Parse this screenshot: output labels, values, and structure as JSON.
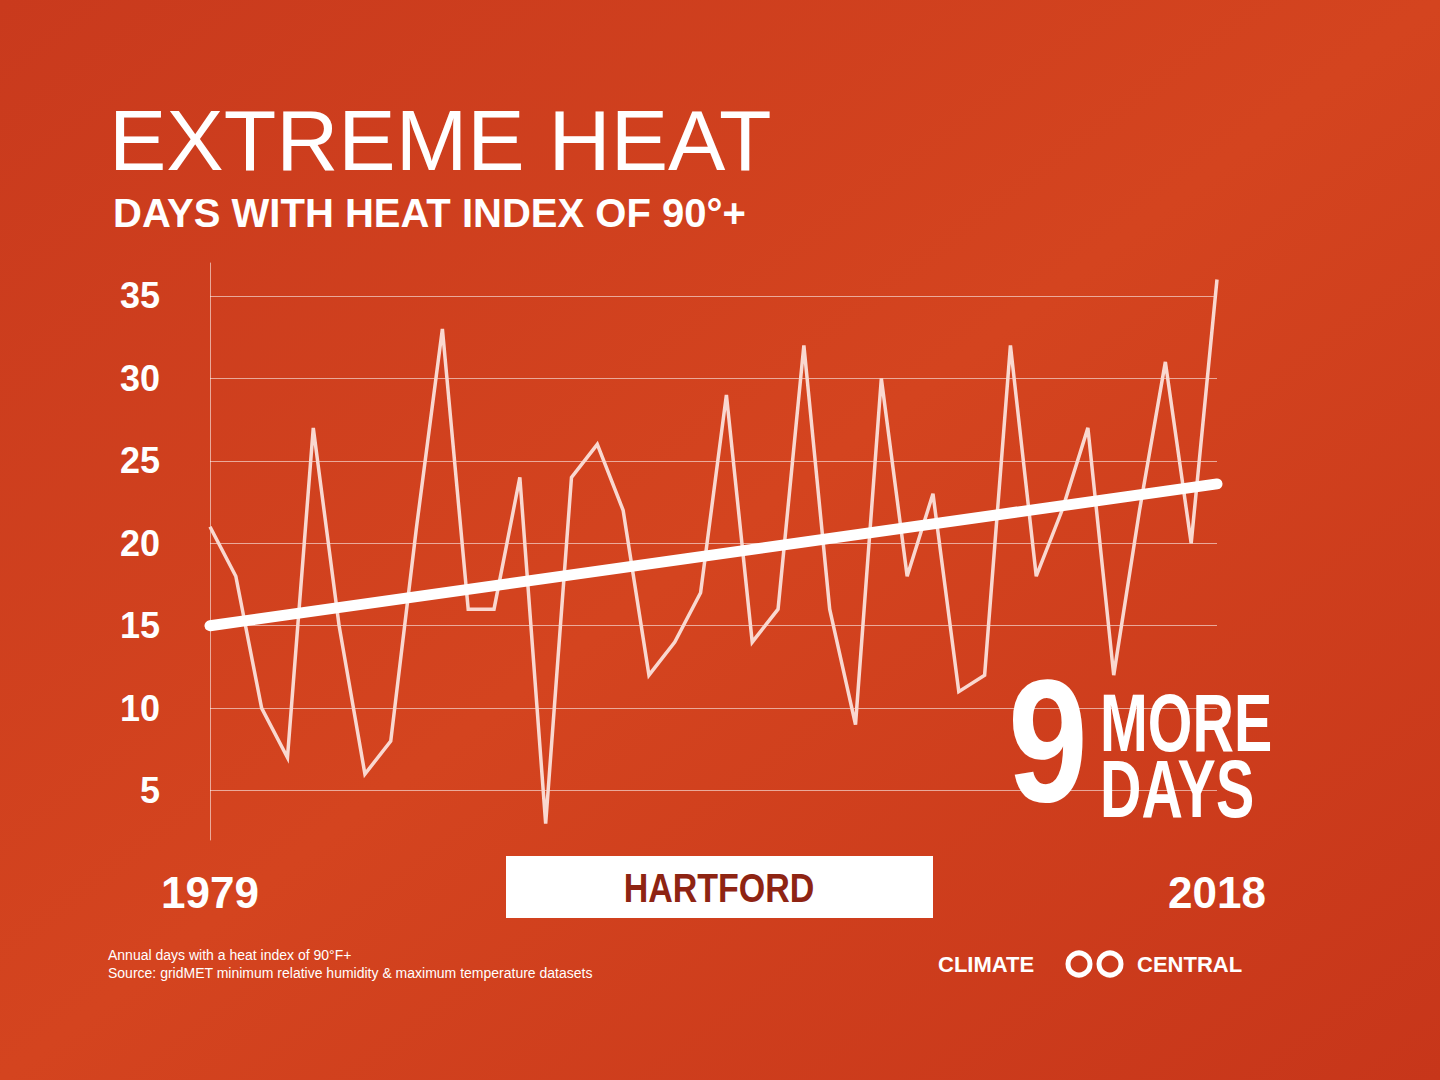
{
  "chart_data": {
    "type": "line",
    "title": "EXTREME HEAT",
    "subtitle": "DAYS WITH HEAT INDEX OF 90°+",
    "location": "HARTFORD",
    "x": [
      1979,
      1980,
      1981,
      1982,
      1983,
      1984,
      1985,
      1986,
      1987,
      1988,
      1989,
      1990,
      1991,
      1992,
      1993,
      1994,
      1995,
      1996,
      1997,
      1998,
      1999,
      2000,
      2001,
      2002,
      2003,
      2004,
      2005,
      2006,
      2007,
      2008,
      2009,
      2010,
      2011,
      2012,
      2013,
      2014,
      2015,
      2016,
      2017,
      2018
    ],
    "values": [
      21,
      18,
      10,
      7,
      27,
      15,
      6,
      8,
      21,
      33,
      16,
      16,
      24,
      3,
      24,
      26,
      22,
      12,
      14,
      17,
      29,
      14,
      16,
      32,
      16,
      9,
      30,
      18,
      23,
      11,
      12,
      32,
      18,
      22,
      27,
      12,
      22,
      31,
      20,
      36
    ],
    "color": "#f9d8d0",
    "trend": {
      "x": [
        1979,
        2018
      ],
      "values": [
        15,
        23.6
      ]
    },
    "annotation": {
      "number": 9,
      "lines": [
        "MORE",
        "DAYS"
      ]
    },
    "xlim": [
      1979,
      2018
    ],
    "xticks": [
      1979,
      2018
    ],
    "ylim": [
      2,
      37
    ],
    "yticks": [
      5,
      10,
      15,
      20,
      25,
      30,
      35
    ],
    "grid": true,
    "notes": [
      "Annual days with a heat index of 90°F+",
      "Source: gridMET minimum relative humidity & maximum temperature datasets"
    ],
    "brand": [
      "CLIMATE",
      "CENTRAL"
    ]
  }
}
